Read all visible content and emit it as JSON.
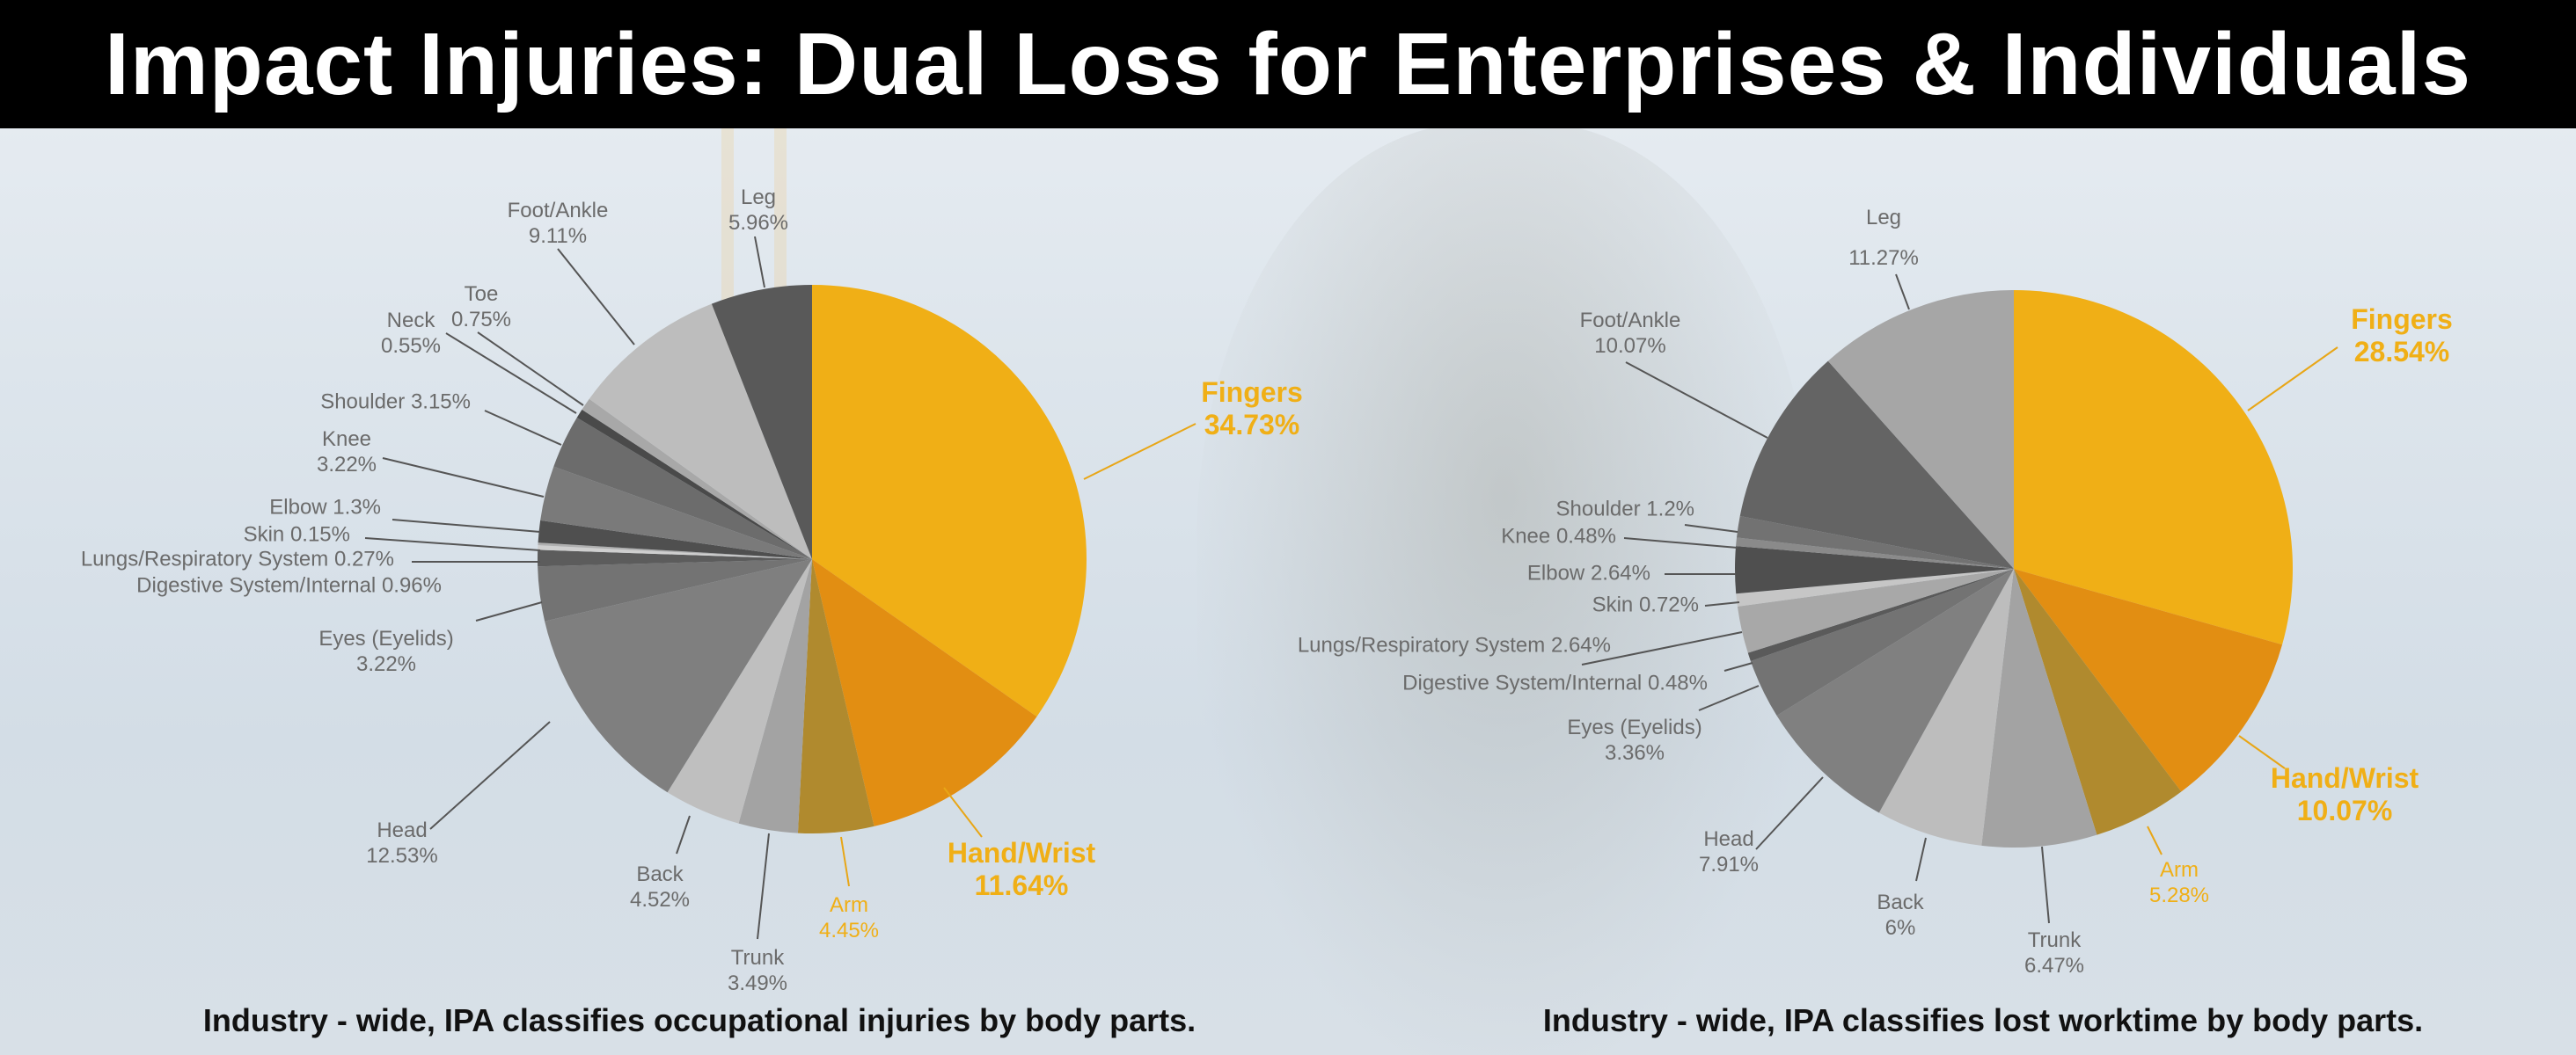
{
  "title": "Impact Injuries: Dual Loss for Enterprises & Individuals",
  "chart_data": [
    {
      "type": "pie",
      "title": "",
      "caption": "Industry - wide, IPA classifies occupational injuries by body parts.",
      "start": "top, clockwise",
      "slices": [
        {
          "label": "Fingers",
          "value": 34.73,
          "display": "34.73%",
          "color": "#F0AF16",
          "emphasis": "big"
        },
        {
          "label": "Hand/Wrist",
          "value": 11.64,
          "display": "11.64%",
          "color": "#E28E12",
          "emphasis": "big"
        },
        {
          "label": "Arm",
          "value": 4.45,
          "display": "4.45%",
          "color": "#B08A2E",
          "emphasis": "accent"
        },
        {
          "label": "Trunk",
          "value": 3.49,
          "display": "3.49%",
          "color": "#A3A3A3"
        },
        {
          "label": "Back",
          "value": 4.52,
          "display": "4.52%",
          "color": "#BFBFBF"
        },
        {
          "label": "Head",
          "value": 12.53,
          "display": "12.53%",
          "color": "#7F7F7F"
        },
        {
          "label": "Eyes (Eyelids)",
          "value": 3.22,
          "display": "3.22%",
          "color": "#737373"
        },
        {
          "label": "Digestive System/Internal",
          "value": 0.96,
          "display": "0.96%",
          "color": "#5C5C5C"
        },
        {
          "label": "Lungs/Respiratory System",
          "value": 0.27,
          "display": "0.27%",
          "color": "#CFCFCF"
        },
        {
          "label": "Skin",
          "value": 0.15,
          "display": "0.15%",
          "color": "#AFAFAF"
        },
        {
          "label": "Elbow",
          "value": 1.3,
          "display": "1.3%",
          "color": "#4F4F4F"
        },
        {
          "label": "Knee",
          "value": 3.22,
          "display": "3.22%",
          "color": "#7A7A7A"
        },
        {
          "label": "Shoulder",
          "value": 3.15,
          "display": "3.15%",
          "color": "#6C6C6C"
        },
        {
          "label": "Neck",
          "value": 0.55,
          "display": "0.55%",
          "color": "#4A4A4A"
        },
        {
          "label": "Toe",
          "value": 0.75,
          "display": "0.75%",
          "color": "#A8A8A8"
        },
        {
          "label": "Foot/Ankle",
          "value": 9.11,
          "display": "9.11%",
          "color": "#BDBDBD"
        },
        {
          "label": "Leg",
          "value": 5.96,
          "display": "5.96%",
          "color": "#595959"
        }
      ]
    },
    {
      "type": "pie",
      "title": "",
      "caption": "Industry - wide, IPA classifies lost worktime by body parts.",
      "start": "top, clockwise",
      "slices": [
        {
          "label": "Fingers",
          "value": 28.54,
          "display": "28.54%",
          "color": "#F0AF16",
          "emphasis": "big"
        },
        {
          "label": "Hand/Wrist",
          "value": 10.07,
          "display": "10.07%",
          "color": "#E28E12",
          "emphasis": "big"
        },
        {
          "label": "Arm",
          "value": 5.28,
          "display": "5.28%",
          "color": "#B08A2E",
          "emphasis": "accent"
        },
        {
          "label": "Trunk",
          "value": 6.47,
          "display": "6.47%",
          "color": "#A3A3A3"
        },
        {
          "label": "Back",
          "value": 6,
          "display": "6%",
          "color": "#BDBDBD"
        },
        {
          "label": "Head",
          "value": 7.91,
          "display": "7.91%",
          "color": "#808080"
        },
        {
          "label": "Eyes (Eyelids)",
          "value": 3.36,
          "display": "3.36%",
          "color": "#737373"
        },
        {
          "label": "Digestive System/Internal",
          "value": 0.48,
          "display": "0.48%",
          "color": "#5A5A5A"
        },
        {
          "label": "Lungs/Respiratory System",
          "value": 2.64,
          "display": "2.64%",
          "color": "#A8A8A8"
        },
        {
          "label": "Skin",
          "value": 0.72,
          "display": "0.72%",
          "color": "#C6C6C6"
        },
        {
          "label": "Elbow",
          "value": 2.64,
          "display": "2.64%",
          "color": "#4F4F4F"
        },
        {
          "label": "Knee",
          "value": 0.48,
          "display": "0.48%",
          "color": "#8A8A8A"
        },
        {
          "label": "Shoulder",
          "value": 1.2,
          "display": "1.2%",
          "color": "#727272"
        },
        {
          "label": "Foot/Ankle",
          "value": 10.07,
          "display": "10.07%",
          "color": "#646464"
        },
        {
          "label": "Leg",
          "value": 11.27,
          "display": "11.27%",
          "color": "#A6A6A6"
        }
      ]
    }
  ]
}
